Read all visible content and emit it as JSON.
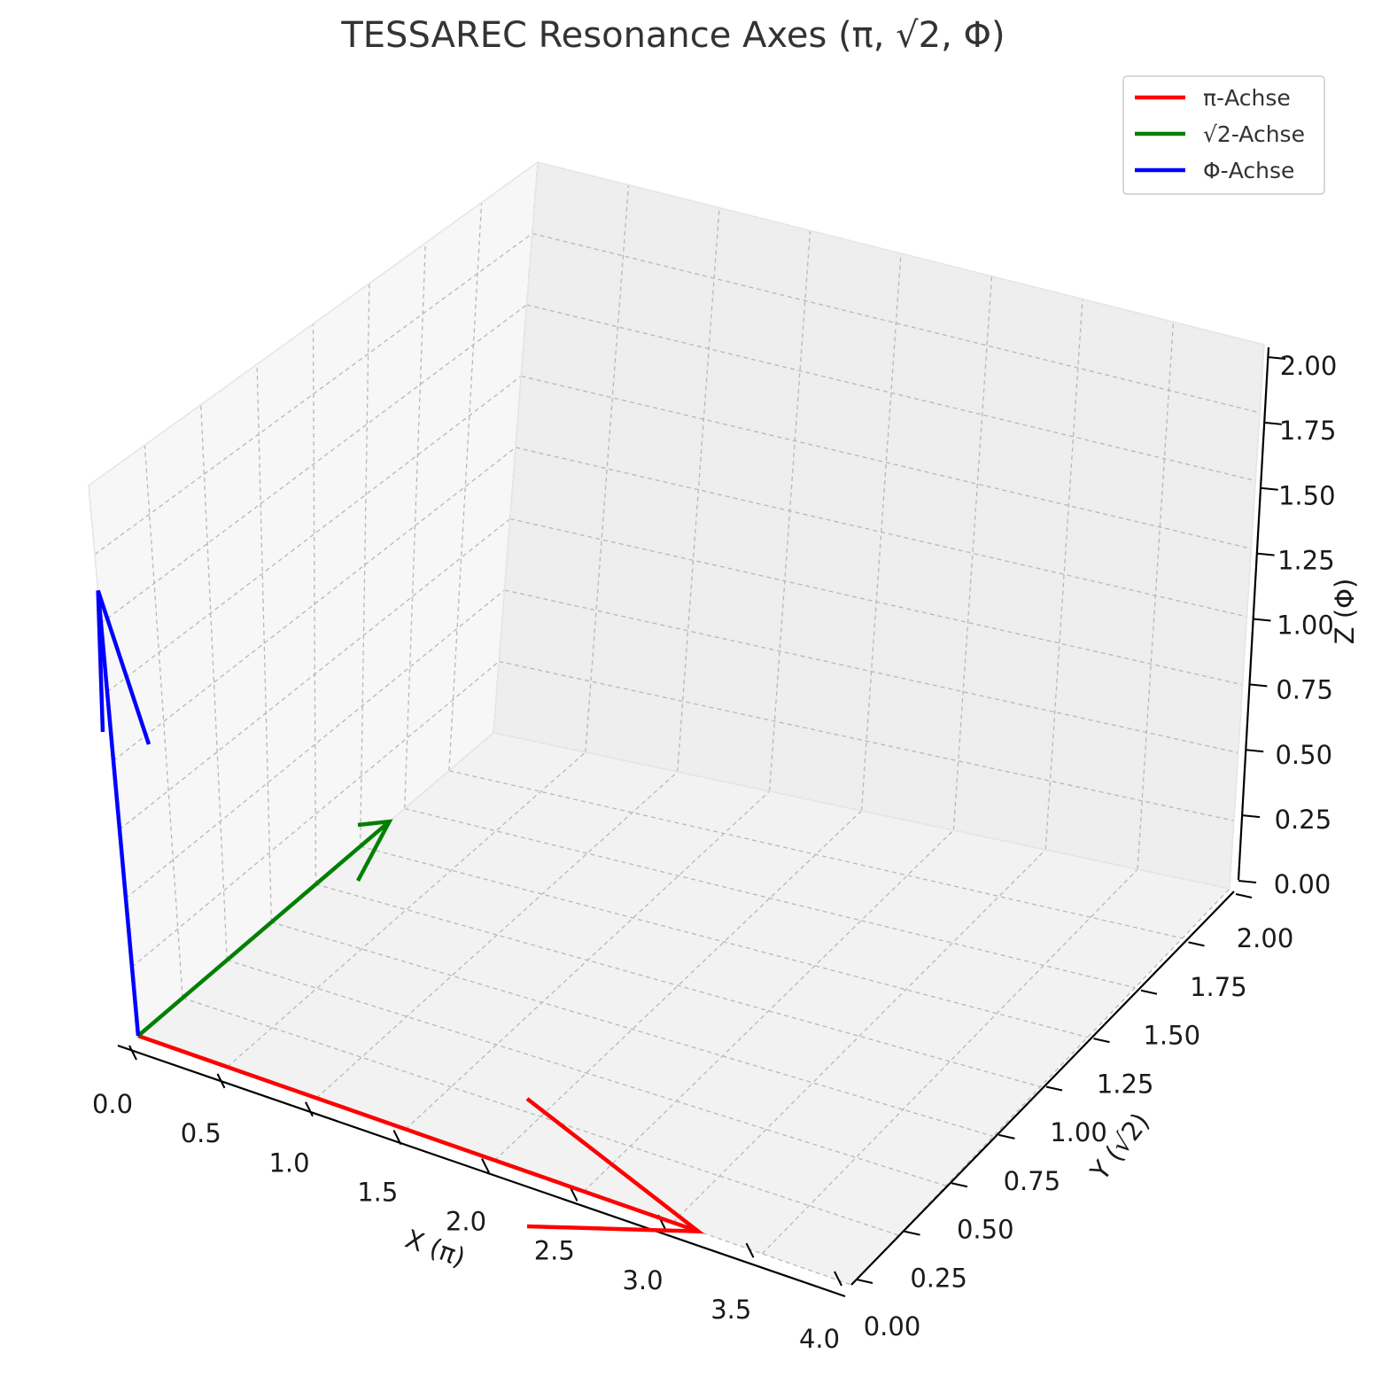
{
  "chart_data": {
    "type": "3d-quiver",
    "title": "TESSAREC Resonance Axes (π, √2, Φ)",
    "xlabel": "X (π)",
    "ylabel": "Y (√2)",
    "zlabel": "Z (Φ)",
    "xlim": [
      0,
      4
    ],
    "ylim": [
      0,
      2
    ],
    "zlim": [
      0,
      2
    ],
    "xticks": [
      "0.0",
      "0.5",
      "1.0",
      "1.5",
      "2.0",
      "2.5",
      "3.0",
      "3.5",
      "4.0"
    ],
    "yticks": [
      "0.00",
      "0.25",
      "0.50",
      "0.75",
      "1.00",
      "1.25",
      "1.50",
      "1.75",
      "2.00"
    ],
    "zticks": [
      "0.00",
      "0.25",
      "0.50",
      "0.75",
      "1.00",
      "1.25",
      "1.50",
      "1.75",
      "2.00"
    ],
    "grid": true,
    "legend_position": "top-right",
    "series": [
      {
        "name": "π-Achse",
        "color": "#ff0000",
        "origin": [
          0,
          0,
          0
        ],
        "vector": [
          3.14159,
          0,
          0
        ]
      },
      {
        "name": "√2-Achse",
        "color": "#008000",
        "origin": [
          0,
          0,
          0
        ],
        "vector": [
          0,
          1.41421,
          0
        ]
      },
      {
        "name": "Φ-Achse",
        "color": "#0000ff",
        "origin": [
          0,
          0,
          0
        ],
        "vector": [
          0,
          0,
          1.61803
        ]
      }
    ]
  }
}
